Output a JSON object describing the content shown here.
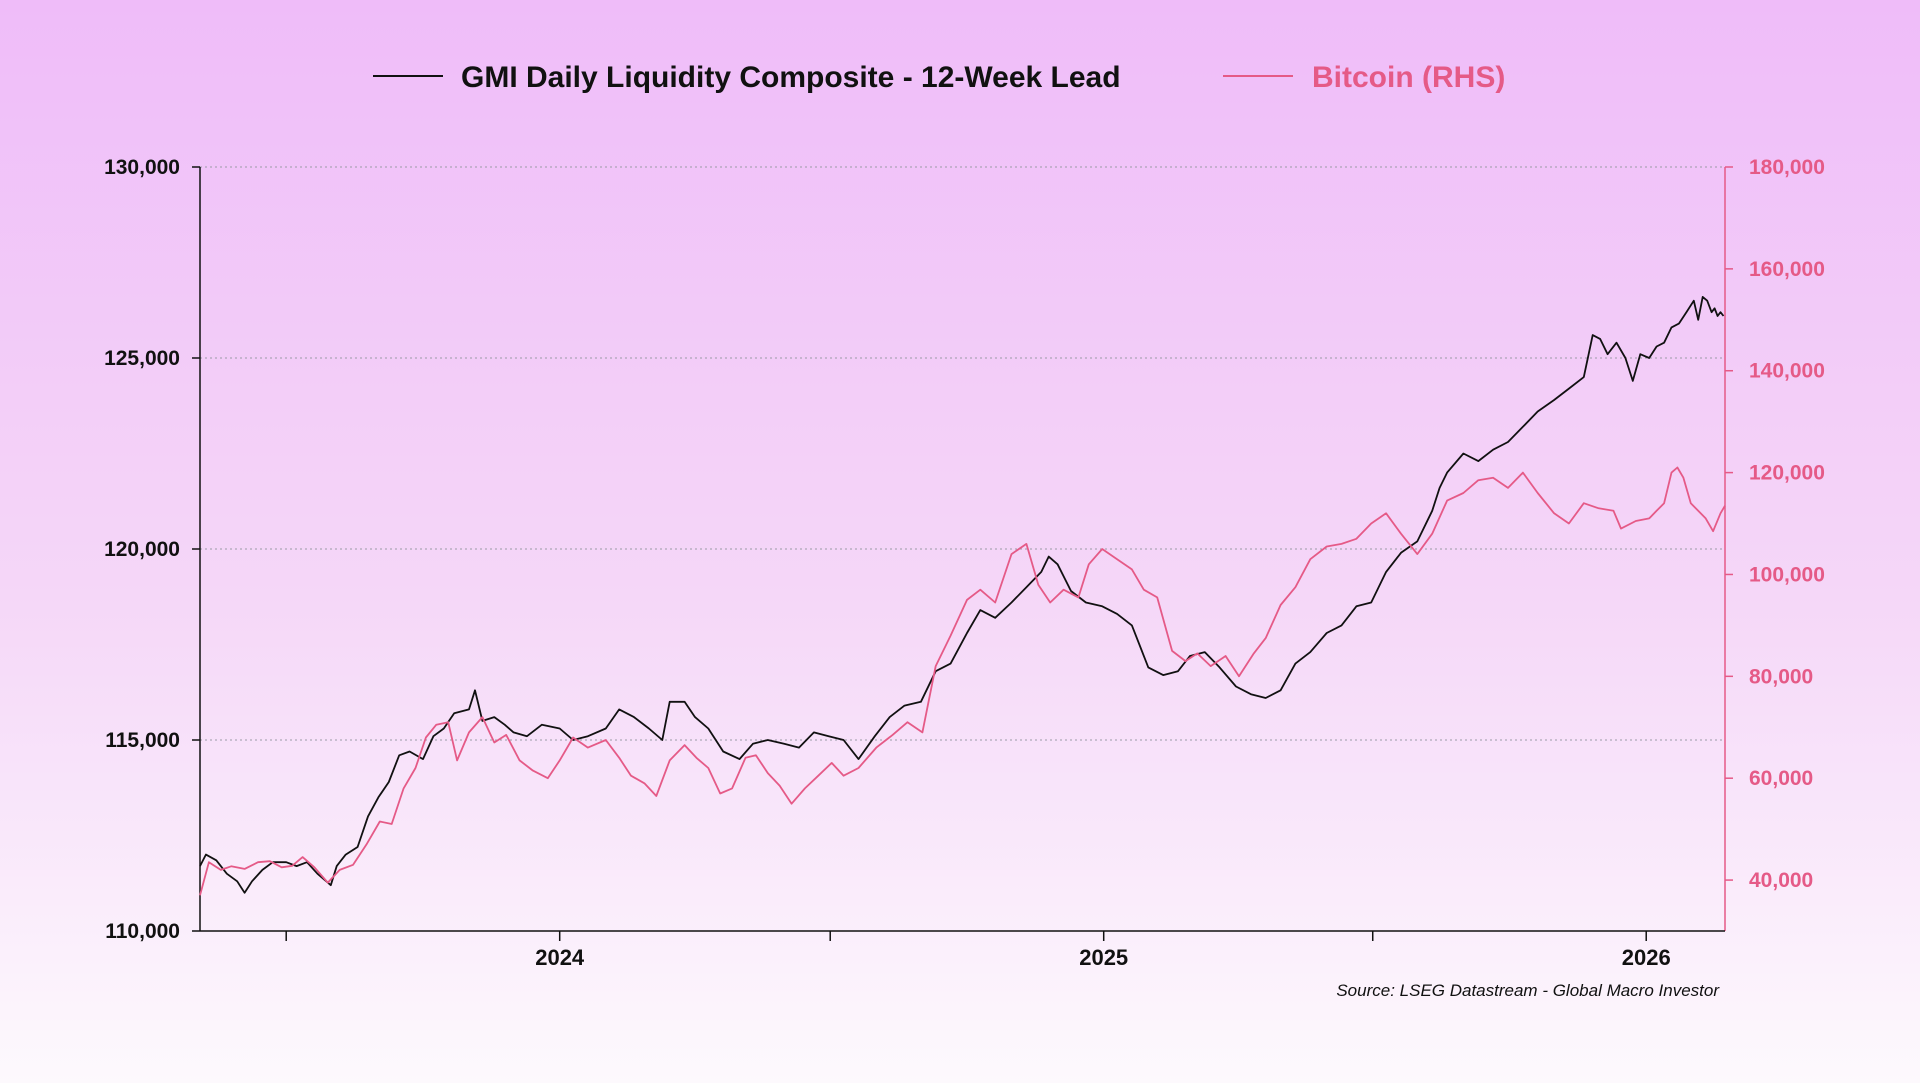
{
  "chart_data": {
    "type": "line",
    "title": "",
    "legend_position": "top-center",
    "source": "Source: LSEG Datastream - Global Macro Investor",
    "colors": {
      "liquidity": "#111111",
      "bitcoin": "#e55a87",
      "grid": "#9a9aa6"
    },
    "grid": true,
    "x_axis": {
      "range": [
        "2023-05-04",
        "2026-02-23"
      ],
      "tick_marks": [
        "2023-07-01",
        "2024-01-01",
        "2024-07-01",
        "2025-01-01",
        "2025-07-01",
        "2026-01-01"
      ],
      "tick_labels": [
        {
          "date": "2024-01-01",
          "label": "2024"
        },
        {
          "date": "2025-01-01",
          "label": "2025"
        },
        {
          "date": "2026-01-01",
          "label": "2026"
        }
      ]
    },
    "y_left": {
      "range": [
        110000,
        130000
      ],
      "ticks": [
        110000,
        115000,
        120000,
        125000,
        130000
      ],
      "tick_labels": [
        "110,000",
        "115,000",
        "120,000",
        "125,000",
        "130,000"
      ]
    },
    "y_right": {
      "range": [
        30000,
        180000
      ],
      "ticks": [
        40000,
        60000,
        80000,
        100000,
        120000,
        140000,
        160000,
        180000
      ],
      "tick_labels": [
        "40,000",
        "60,000",
        "80,000",
        "100,000",
        "120,000",
        "140,000",
        "160,000",
        "180,000"
      ]
    },
    "series": [
      {
        "name": "GMI Daily Liquidity Composite - 12-Week Lead",
        "axis": "left",
        "points": [
          [
            "2023-05-04",
            111700
          ],
          [
            "2023-05-08",
            112000
          ],
          [
            "2023-05-15",
            111850
          ],
          [
            "2023-05-22",
            111500
          ],
          [
            "2023-05-29",
            111300
          ],
          [
            "2023-06-03",
            111000
          ],
          [
            "2023-06-08",
            111300
          ],
          [
            "2023-06-15",
            111600
          ],
          [
            "2023-06-22",
            111800
          ],
          [
            "2023-07-01",
            111800
          ],
          [
            "2023-07-08",
            111700
          ],
          [
            "2023-07-15",
            111800
          ],
          [
            "2023-07-22",
            111500
          ],
          [
            "2023-07-31",
            111200
          ],
          [
            "2023-08-04",
            111700
          ],
          [
            "2023-08-10",
            112000
          ],
          [
            "2023-08-18",
            112200
          ],
          [
            "2023-08-25",
            113000
          ],
          [
            "2023-09-01",
            113500
          ],
          [
            "2023-09-08",
            113900
          ],
          [
            "2023-09-15",
            114600
          ],
          [
            "2023-09-22",
            114700
          ],
          [
            "2023-10-01",
            114500
          ],
          [
            "2023-10-08",
            115100
          ],
          [
            "2023-10-15",
            115300
          ],
          [
            "2023-10-22",
            115700
          ],
          [
            "2023-11-01",
            115800
          ],
          [
            "2023-11-05",
            116300
          ],
          [
            "2023-11-10",
            115500
          ],
          [
            "2023-11-18",
            115600
          ],
          [
            "2023-11-25",
            115400
          ],
          [
            "2023-12-01",
            115200
          ],
          [
            "2023-12-10",
            115100
          ],
          [
            "2023-12-20",
            115400
          ],
          [
            "2024-01-01",
            115300
          ],
          [
            "2024-01-10",
            115000
          ],
          [
            "2024-01-20",
            115100
          ],
          [
            "2024-02-01",
            115300
          ],
          [
            "2024-02-10",
            115800
          ],
          [
            "2024-02-20",
            115600
          ],
          [
            "2024-03-01",
            115300
          ],
          [
            "2024-03-10",
            115000
          ],
          [
            "2024-03-15",
            116000
          ],
          [
            "2024-03-25",
            116000
          ],
          [
            "2024-04-01",
            115600
          ],
          [
            "2024-04-10",
            115300
          ],
          [
            "2024-04-20",
            114700
          ],
          [
            "2024-05-01",
            114500
          ],
          [
            "2024-05-10",
            114900
          ],
          [
            "2024-05-20",
            115000
          ],
          [
            "2024-05-31",
            114900
          ],
          [
            "2024-06-10",
            114800
          ],
          [
            "2024-06-20",
            115200
          ],
          [
            "2024-06-30",
            115100
          ],
          [
            "2024-07-10",
            115000
          ],
          [
            "2024-07-20",
            114500
          ],
          [
            "2024-07-31",
            115100
          ],
          [
            "2024-08-10",
            115600
          ],
          [
            "2024-08-20",
            115900
          ],
          [
            "2024-08-31",
            116000
          ],
          [
            "2024-09-10",
            116800
          ],
          [
            "2024-09-20",
            117000
          ],
          [
            "2024-10-01",
            117800
          ],
          [
            "2024-10-10",
            118400
          ],
          [
            "2024-10-20",
            118200
          ],
          [
            "2024-10-31",
            118600
          ],
          [
            "2024-11-10",
            119000
          ],
          [
            "2024-11-20",
            119400
          ],
          [
            "2024-11-25",
            119800
          ],
          [
            "2024-12-01",
            119600
          ],
          [
            "2024-12-10",
            118900
          ],
          [
            "2024-12-20",
            118600
          ],
          [
            "2024-12-31",
            118500
          ],
          [
            "2025-01-10",
            118300
          ],
          [
            "2025-01-20",
            118000
          ],
          [
            "2025-01-31",
            116900
          ],
          [
            "2025-02-10",
            116700
          ],
          [
            "2025-02-20",
            116800
          ],
          [
            "2025-02-28",
            117200
          ],
          [
            "2025-03-10",
            117300
          ],
          [
            "2025-03-20",
            116900
          ],
          [
            "2025-03-31",
            116400
          ],
          [
            "2025-04-10",
            116200
          ],
          [
            "2025-04-20",
            116100
          ],
          [
            "2025-04-30",
            116300
          ],
          [
            "2025-05-10",
            117000
          ],
          [
            "2025-05-20",
            117300
          ],
          [
            "2025-05-31",
            117800
          ],
          [
            "2025-06-10",
            118000
          ],
          [
            "2025-06-20",
            118500
          ],
          [
            "2025-06-30",
            118600
          ],
          [
            "2025-07-10",
            119400
          ],
          [
            "2025-07-20",
            119900
          ],
          [
            "2025-07-31",
            120200
          ],
          [
            "2025-08-10",
            121000
          ],
          [
            "2025-08-15",
            121600
          ],
          [
            "2025-08-20",
            122000
          ],
          [
            "2025-08-31",
            122500
          ],
          [
            "2025-09-10",
            122300
          ],
          [
            "2025-09-20",
            122600
          ],
          [
            "2025-09-30",
            122800
          ],
          [
            "2025-10-10",
            123200
          ],
          [
            "2025-10-20",
            123600
          ],
          [
            "2025-10-31",
            123900
          ],
          [
            "2025-11-10",
            124200
          ],
          [
            "2025-11-20",
            124500
          ],
          [
            "2025-11-26",
            125600
          ],
          [
            "2025-12-01",
            125500
          ],
          [
            "2025-12-06",
            125100
          ],
          [
            "2025-12-12",
            125400
          ],
          [
            "2025-12-18",
            125000
          ],
          [
            "2025-12-23",
            124400
          ],
          [
            "2025-12-28",
            125100
          ],
          [
            "2026-01-03",
            125000
          ],
          [
            "2026-01-08",
            125300
          ],
          [
            "2026-01-13",
            125400
          ],
          [
            "2026-01-18",
            125800
          ],
          [
            "2026-01-23",
            125900
          ],
          [
            "2026-01-28",
            126200
          ],
          [
            "2026-02-02",
            126500
          ],
          [
            "2026-02-05",
            126000
          ],
          [
            "2026-02-08",
            126600
          ],
          [
            "2026-02-11",
            126500
          ],
          [
            "2026-02-14",
            126200
          ],
          [
            "2026-02-16",
            126300
          ],
          [
            "2026-02-18",
            126100
          ],
          [
            "2026-02-20",
            126200
          ],
          [
            "2026-02-22",
            126100
          ]
        ]
      },
      {
        "name": "Bitcoin (RHS)",
        "axis": "right",
        "points": [
          [
            "2023-05-04",
            37000
          ],
          [
            "2023-05-10",
            43500
          ],
          [
            "2023-05-18",
            42000
          ],
          [
            "2023-05-25",
            42700
          ],
          [
            "2023-06-03",
            42200
          ],
          [
            "2023-06-12",
            43500
          ],
          [
            "2023-06-20",
            43700
          ],
          [
            "2023-06-28",
            42500
          ],
          [
            "2023-07-05",
            42800
          ],
          [
            "2023-07-12",
            44500
          ],
          [
            "2023-07-20",
            42500
          ],
          [
            "2023-07-29",
            39500
          ],
          [
            "2023-08-06",
            42000
          ],
          [
            "2023-08-15",
            43000
          ],
          [
            "2023-08-24",
            47000
          ],
          [
            "2023-09-02",
            51500
          ],
          [
            "2023-09-10",
            51000
          ],
          [
            "2023-09-18",
            58000
          ],
          [
            "2023-09-26",
            62000
          ],
          [
            "2023-10-03",
            68000
          ],
          [
            "2023-10-10",
            70500
          ],
          [
            "2023-10-18",
            71000
          ],
          [
            "2023-10-24",
            63500
          ],
          [
            "2023-11-01",
            69000
          ],
          [
            "2023-11-10",
            72000
          ],
          [
            "2023-11-18",
            67000
          ],
          [
            "2023-11-26",
            68500
          ],
          [
            "2023-12-05",
            63500
          ],
          [
            "2023-12-14",
            61500
          ],
          [
            "2023-12-24",
            60000
          ],
          [
            "2024-01-01",
            63500
          ],
          [
            "2024-01-10",
            68000
          ],
          [
            "2024-01-20",
            66000
          ],
          [
            "2024-02-01",
            67500
          ],
          [
            "2024-02-10",
            64000
          ],
          [
            "2024-02-18",
            60500
          ],
          [
            "2024-02-27",
            59000
          ],
          [
            "2024-03-06",
            56500
          ],
          [
            "2024-03-15",
            63500
          ],
          [
            "2024-03-25",
            66500
          ],
          [
            "2024-04-02",
            64000
          ],
          [
            "2024-04-10",
            62000
          ],
          [
            "2024-04-18",
            57000
          ],
          [
            "2024-04-26",
            58000
          ],
          [
            "2024-05-05",
            64000
          ],
          [
            "2024-05-12",
            64500
          ],
          [
            "2024-05-20",
            61000
          ],
          [
            "2024-05-28",
            58500
          ],
          [
            "2024-06-05",
            55000
          ],
          [
            "2024-06-14",
            58000
          ],
          [
            "2024-06-23",
            60500
          ],
          [
            "2024-07-02",
            63000
          ],
          [
            "2024-07-10",
            60500
          ],
          [
            "2024-07-20",
            62000
          ],
          [
            "2024-08-01",
            66000
          ],
          [
            "2024-08-12",
            68500
          ],
          [
            "2024-08-22",
            71000
          ],
          [
            "2024-09-01",
            69000
          ],
          [
            "2024-09-10",
            82000
          ],
          [
            "2024-09-20",
            88000
          ],
          [
            "2024-10-01",
            95000
          ],
          [
            "2024-10-10",
            97000
          ],
          [
            "2024-10-20",
            94500
          ],
          [
            "2024-10-31",
            104000
          ],
          [
            "2024-11-10",
            106000
          ],
          [
            "2024-11-18",
            98000
          ],
          [
            "2024-11-26",
            94500
          ],
          [
            "2024-12-05",
            97000
          ],
          [
            "2024-12-15",
            95500
          ],
          [
            "2024-12-22",
            102000
          ],
          [
            "2024-12-31",
            105000
          ],
          [
            "2025-01-10",
            103000
          ],
          [
            "2025-01-20",
            101000
          ],
          [
            "2025-01-28",
            97000
          ],
          [
            "2025-02-06",
            95500
          ],
          [
            "2025-02-16",
            85000
          ],
          [
            "2025-02-25",
            83000
          ],
          [
            "2025-03-05",
            84500
          ],
          [
            "2025-03-14",
            82000
          ],
          [
            "2025-03-24",
            84000
          ],
          [
            "2025-04-02",
            80000
          ],
          [
            "2025-04-12",
            84500
          ],
          [
            "2025-04-20",
            87500
          ],
          [
            "2025-04-30",
            94000
          ],
          [
            "2025-05-10",
            97500
          ],
          [
            "2025-05-20",
            103000
          ],
          [
            "2025-05-31",
            105500
          ],
          [
            "2025-06-10",
            106000
          ],
          [
            "2025-06-20",
            107000
          ],
          [
            "2025-06-30",
            110000
          ],
          [
            "2025-07-10",
            112000
          ],
          [
            "2025-07-20",
            108000
          ],
          [
            "2025-07-31",
            104000
          ],
          [
            "2025-08-10",
            108000
          ],
          [
            "2025-08-20",
            114500
          ],
          [
            "2025-08-31",
            116000
          ],
          [
            "2025-09-10",
            118500
          ],
          [
            "2025-09-20",
            119000
          ],
          [
            "2025-09-30",
            117000
          ],
          [
            "2025-10-10",
            120000
          ],
          [
            "2025-10-20",
            116000
          ],
          [
            "2025-10-31",
            112000
          ],
          [
            "2025-11-10",
            110000
          ],
          [
            "2025-11-20",
            114000
          ],
          [
            "2025-11-30",
            113000
          ],
          [
            "2025-12-10",
            112500
          ],
          [
            "2025-12-15",
            109000
          ],
          [
            "2025-12-25",
            110500
          ],
          [
            "2026-01-03",
            111000
          ],
          [
            "2026-01-08",
            112500
          ],
          [
            "2026-01-13",
            114000
          ],
          [
            "2026-01-18",
            120000
          ],
          [
            "2026-01-22",
            121000
          ],
          [
            "2026-01-26",
            119000
          ],
          [
            "2026-01-31",
            114000
          ],
          [
            "2026-02-05",
            112500
          ],
          [
            "2026-02-10",
            111000
          ],
          [
            "2026-02-15",
            108500
          ],
          [
            "2026-02-20",
            112000
          ],
          [
            "2026-02-23",
            113500
          ]
        ]
      }
    ]
  }
}
